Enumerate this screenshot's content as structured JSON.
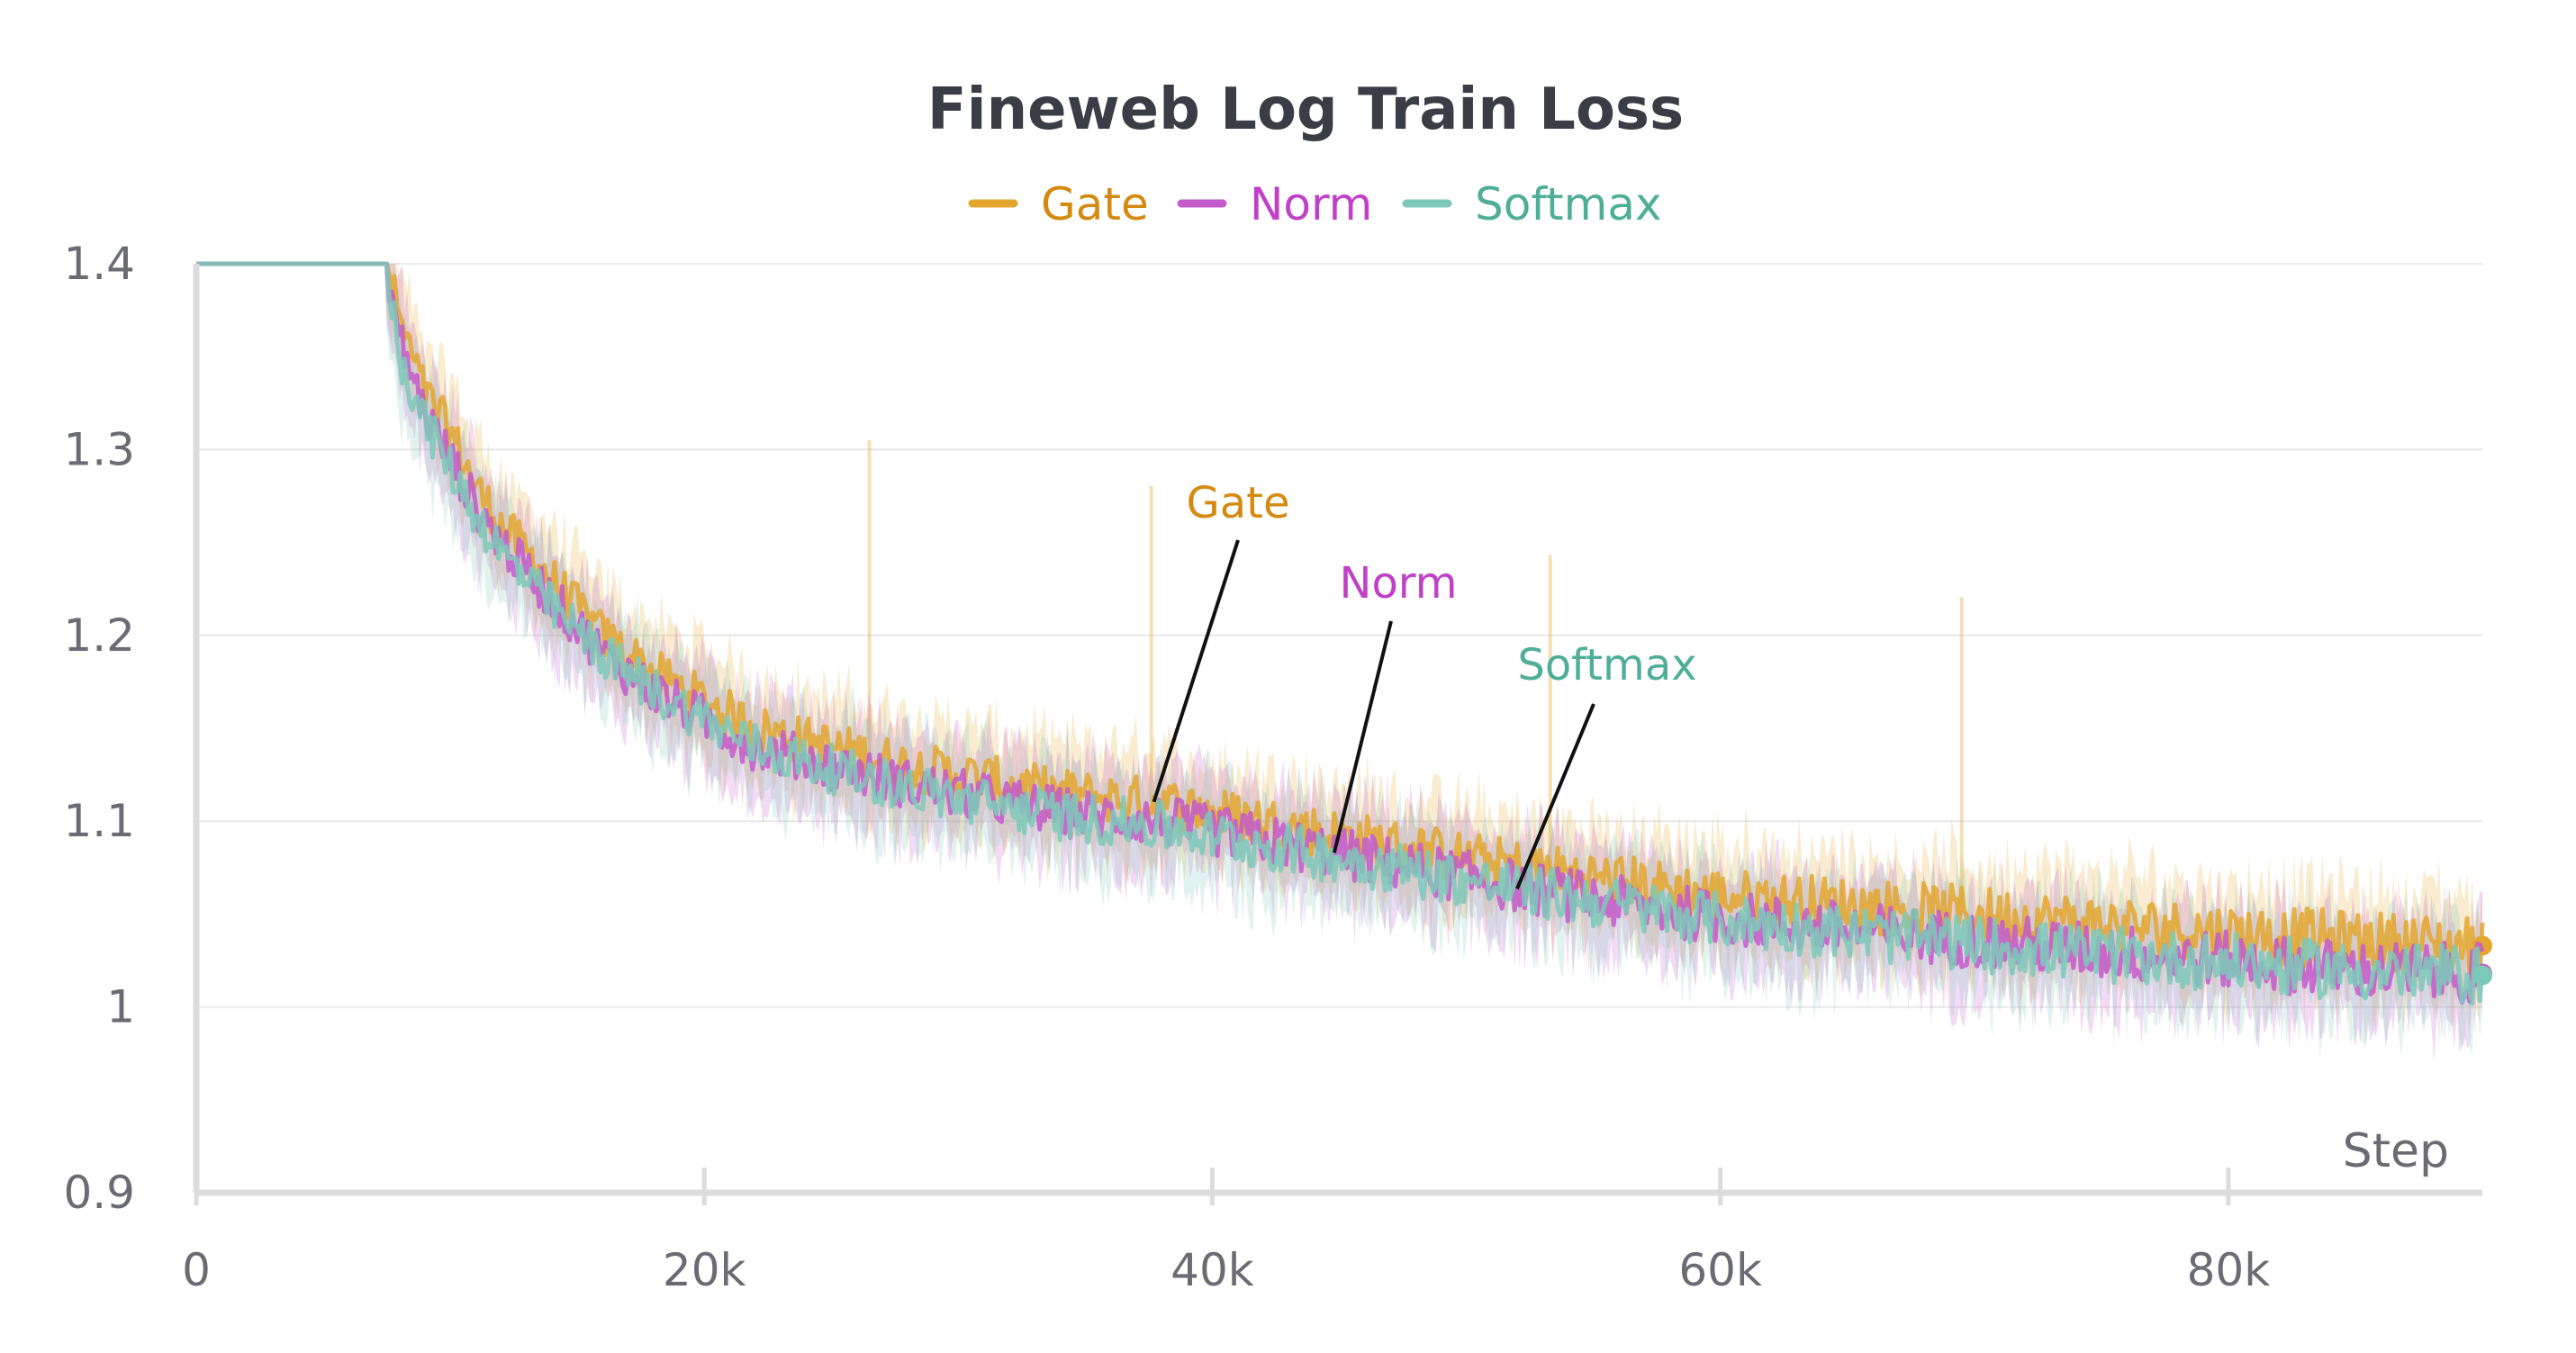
{
  "chart_data": {
    "type": "line",
    "title": "Fineweb Log Train Loss",
    "xlabel": "Step",
    "ylabel": "",
    "xlim": [
      0,
      90000
    ],
    "ylim": [
      0.9,
      1.4
    ],
    "xticks": [
      0,
      20000,
      40000,
      60000,
      80000
    ],
    "xtick_labels": [
      "0",
      "20k",
      "40k",
      "60k",
      "80k"
    ],
    "yticks": [
      0.9,
      1.0,
      1.1,
      1.2,
      1.3,
      1.4
    ],
    "ytick_labels": [
      "0.9",
      "1",
      "1.1",
      "1.2",
      "1.3",
      "1.4"
    ],
    "grid": true,
    "legend": "top-center",
    "series": [
      {
        "name": "Gate",
        "color": "#E3A72F",
        "label_color": "#D48A10",
        "x": [
          0,
          7500,
          8000,
          9000,
          10000,
          11000,
          12000,
          14000,
          16000,
          18000,
          20000,
          22000,
          25000,
          28000,
          30000,
          34000,
          38000,
          42000,
          46000,
          50000,
          55000,
          60000,
          65000,
          70000,
          75000,
          80000,
          85000,
          90000
        ],
        "values": [
          1.4,
          1.4,
          1.37,
          1.33,
          1.31,
          1.28,
          1.26,
          1.23,
          1.2,
          1.18,
          1.165,
          1.15,
          1.14,
          1.13,
          1.125,
          1.115,
          1.11,
          1.1,
          1.09,
          1.08,
          1.07,
          1.06,
          1.055,
          1.05,
          1.045,
          1.04,
          1.036,
          1.033
        ],
        "annotation": "Gate"
      },
      {
        "name": "Norm",
        "color": "#C45BCB",
        "label_color": "#C040C8",
        "x": [
          0,
          7500,
          8000,
          9000,
          10000,
          11000,
          12000,
          14000,
          16000,
          18000,
          20000,
          22000,
          25000,
          28000,
          30000,
          34000,
          38000,
          42000,
          46000,
          50000,
          55000,
          60000,
          65000,
          70000,
          75000,
          80000,
          85000,
          90000
        ],
        "values": [
          1.4,
          1.4,
          1.36,
          1.32,
          1.295,
          1.27,
          1.25,
          1.22,
          1.19,
          1.17,
          1.155,
          1.14,
          1.13,
          1.12,
          1.115,
          1.105,
          1.1,
          1.09,
          1.08,
          1.07,
          1.058,
          1.048,
          1.042,
          1.036,
          1.03,
          1.025,
          1.02,
          1.018
        ],
        "annotation": "Norm"
      },
      {
        "name": "Softmax",
        "color": "#7DC9B8",
        "label_color": "#4FAE98",
        "x": [
          0,
          7500,
          8000,
          9000,
          10000,
          11000,
          12000,
          14000,
          16000,
          18000,
          20000,
          22000,
          25000,
          28000,
          30000,
          34000,
          38000,
          42000,
          46000,
          50000,
          55000,
          60000,
          65000,
          70000,
          75000,
          80000,
          85000,
          90000
        ],
        "values": [
          1.4,
          1.4,
          1.35,
          1.315,
          1.29,
          1.265,
          1.245,
          1.215,
          1.19,
          1.17,
          1.155,
          1.14,
          1.128,
          1.118,
          1.112,
          1.103,
          1.097,
          1.087,
          1.078,
          1.068,
          1.057,
          1.047,
          1.04,
          1.034,
          1.028,
          1.024,
          1.019,
          1.017
        ],
        "annotation": "Softmax"
      }
    ]
  }
}
